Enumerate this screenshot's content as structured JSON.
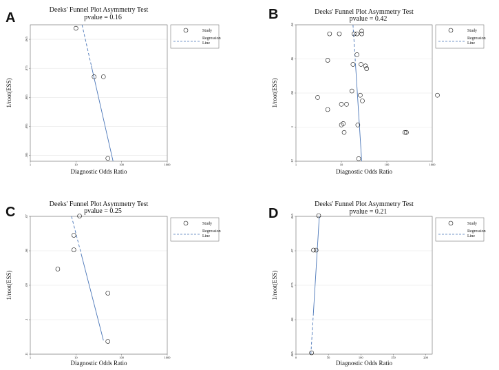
{
  "chart_data": [
    {
      "panel": "A",
      "type": "scatter",
      "title": "Deeks' Funnel Plot Asymmetry Test",
      "subtitle": "pvalue  =  0.16",
      "xlabel": "Diagnostic Odds Ratio",
      "ylabel": "1/root(ESS)",
      "xscale": "log",
      "xlim": [
        1,
        1000
      ],
      "ylim": [
        0.06,
        0.107
      ],
      "y_reversed": true,
      "xticks": [
        {
          "v": 1,
          "label": "1"
        },
        {
          "v": 10,
          "label": "10"
        },
        {
          "v": 100,
          "label": "100"
        },
        {
          "v": 1000,
          "label": "1000"
        }
      ],
      "yticks": [
        {
          "v": 0.065,
          "label": ".065"
        },
        {
          "v": 0.075,
          "label": ".075"
        },
        {
          "v": 0.085,
          "label": ".085"
        },
        {
          "v": 0.095,
          "label": ".095"
        },
        {
          "v": 0.105,
          "label": ".105"
        }
      ],
      "points": [
        {
          "x": 10,
          "y": 0.0612
        },
        {
          "x": 25,
          "y": 0.0779
        },
        {
          "x": 40,
          "y": 0.0779
        },
        {
          "x": 50,
          "y": 0.106
        }
      ],
      "regression": {
        "y0": 0.06,
        "x0": 13.6,
        "y1": 0.107,
        "x1": 65
      },
      "legend": {
        "position": "top-right",
        "items": [
          "Study",
          "Regression Line"
        ]
      }
    },
    {
      "panel": "B",
      "type": "scatter",
      "title": "Deeks' Funnel Plot Asymmetry Test",
      "subtitle": "pvalue  =  0.42",
      "xlabel": "Diagnostic Odds Ratio",
      "ylabel": "1/root(ESS)",
      "xscale": "log",
      "xlim": [
        1,
        1000
      ],
      "ylim": [
        0.04,
        0.12
      ],
      "y_reversed": true,
      "xticks": [
        {
          "v": 1,
          "label": "1"
        },
        {
          "v": 10,
          "label": "10"
        },
        {
          "v": 100,
          "label": "100"
        },
        {
          "v": 1000,
          "label": "1000"
        }
      ],
      "yticks": [
        {
          "v": 0.04,
          "label": ".04"
        },
        {
          "v": 0.06,
          "label": ".06"
        },
        {
          "v": 0.08,
          "label": ".08"
        },
        {
          "v": 0.1,
          "label": ".1"
        },
        {
          "v": 0.12,
          "label": ".12"
        }
      ],
      "points": [
        {
          "x": 3,
          "y": 0.0826
        },
        {
          "x": 5,
          "y": 0.0608
        },
        {
          "x": 5,
          "y": 0.0897
        },
        {
          "x": 5.5,
          "y": 0.0453
        },
        {
          "x": 9,
          "y": 0.0453
        },
        {
          "x": 10,
          "y": 0.0866
        },
        {
          "x": 10,
          "y": 0.0987
        },
        {
          "x": 11,
          "y": 0.0979
        },
        {
          "x": 11.5,
          "y": 0.1031
        },
        {
          "x": 13,
          "y": 0.0866
        },
        {
          "x": 17,
          "y": 0.0788
        },
        {
          "x": 18,
          "y": 0.0632
        },
        {
          "x": 19,
          "y": 0.0453
        },
        {
          "x": 22,
          "y": 0.0453
        },
        {
          "x": 22,
          "y": 0.0575
        },
        {
          "x": 23,
          "y": 0.0987
        },
        {
          "x": 24,
          "y": 0.1185
        },
        {
          "x": 26,
          "y": 0.0813
        },
        {
          "x": 27,
          "y": 0.0632
        },
        {
          "x": 28,
          "y": 0.0436
        },
        {
          "x": 28,
          "y": 0.0453
        },
        {
          "x": 29,
          "y": 0.0846
        },
        {
          "x": 34,
          "y": 0.0641
        },
        {
          "x": 36,
          "y": 0.0657
        },
        {
          "x": 250,
          "y": 0.1031
        },
        {
          "x": 270,
          "y": 0.1031
        },
        {
          "x": 1300,
          "y": 0.0813
        }
      ],
      "regression": {
        "y0": 0.04,
        "x0": 18,
        "y1": 0.12,
        "x1": 28
      },
      "legend": {
        "position": "top-right",
        "items": [
          "Study",
          "Regression Line"
        ]
      }
    },
    {
      "panel": "C",
      "type": "scatter",
      "title": "Deeks' Funnel Plot Asymmetry Test",
      "subtitle": "pvalue  =  0.25",
      "xlabel": "Diagnostic Odds Ratio",
      "ylabel": "1/root(ESS)",
      "xscale": "log",
      "xlim": [
        1,
        1000
      ],
      "ylim": [
        0.07,
        0.11
      ],
      "y_reversed": true,
      "xticks": [
        {
          "v": 1,
          "label": "1"
        },
        {
          "v": 10,
          "label": "10"
        },
        {
          "v": 100,
          "label": "100"
        },
        {
          "v": 1000,
          "label": "1000"
        }
      ],
      "yticks": [
        {
          "v": 0.07,
          "label": ".07"
        },
        {
          "v": 0.08,
          "label": ".08"
        },
        {
          "v": 0.09,
          "label": ".09"
        },
        {
          "v": 0.1,
          "label": ".1"
        },
        {
          "v": 0.11,
          "label": ".11"
        }
      ],
      "points": [
        {
          "x": 4,
          "y": 0.0853
        },
        {
          "x": 9,
          "y": 0.0797
        },
        {
          "x": 9,
          "y": 0.0755
        },
        {
          "x": 12,
          "y": 0.0699
        },
        {
          "x": 50,
          "y": 0.0923
        },
        {
          "x": 50,
          "y": 0.1063
        }
      ],
      "regression": {
        "y0": 0.07,
        "x0": 8,
        "y1": 0.106,
        "x1": 40
      },
      "legend": {
        "position": "top-right",
        "items": [
          "Study",
          "Regression Line"
        ]
      }
    },
    {
      "panel": "D",
      "type": "scatter",
      "title": "Deeks' Funnel Plot Asymmetry Test",
      "subtitle": "pvalue  =  0.21",
      "xlabel": "Diagnostic Odds Ratio",
      "ylabel": "1/root(ESS)",
      "xscale": "linear",
      "xlim": [
        0,
        210
      ],
      "ylim": [
        0.065,
        0.085
      ],
      "y_reversed": true,
      "xticks": [
        {
          "v": 0,
          "label": "0"
        },
        {
          "v": 50,
          "label": "50"
        },
        {
          "v": 100,
          "label": "100"
        },
        {
          "v": 150,
          "label": "150"
        },
        {
          "v": 200,
          "label": "200"
        }
      ],
      "yticks": [
        {
          "v": 0.065,
          "label": ".065"
        },
        {
          "v": 0.07,
          "label": ".07"
        },
        {
          "v": 0.075,
          "label": ".075"
        },
        {
          "v": 0.08,
          "label": ".08"
        },
        {
          "v": 0.085,
          "label": ".085"
        }
      ],
      "points": [
        {
          "x": 27,
          "y": 0.0699
        },
        {
          "x": 31,
          "y": 0.0699
        },
        {
          "x": 35,
          "y": 0.0649
        },
        {
          "x": 24,
          "y": 0.0848
        }
      ],
      "regression": {
        "y0": 0.085,
        "x0": 23,
        "y1": 0.065,
        "x1": 36
      },
      "legend": {
        "position": "top-right",
        "items": [
          "Study",
          "Regression Line"
        ]
      }
    }
  ]
}
